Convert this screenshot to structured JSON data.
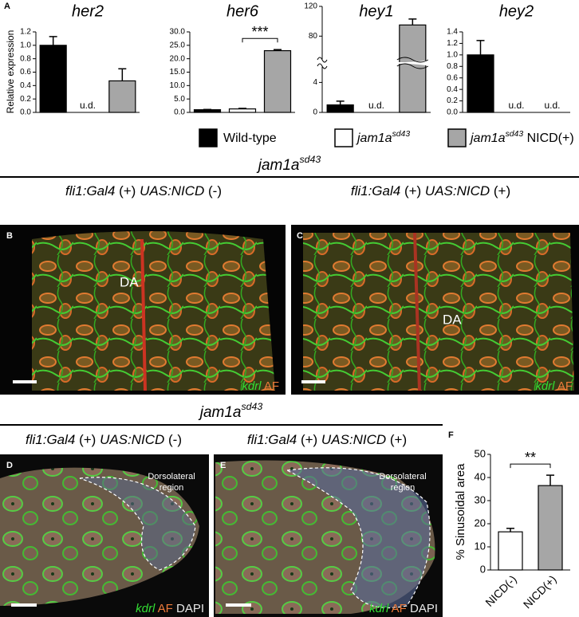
{
  "panel_labels": [
    "A",
    "B",
    "C",
    "D",
    "E",
    "F"
  ],
  "chart_data": [
    {
      "type": "bar",
      "title": "her2",
      "ylabel": "Relative expression",
      "values": [
        1.0,
        null,
        0.47
      ],
      "errors": [
        0.13,
        null,
        0.18
      ],
      "value_labels": [
        null,
        "u.d.",
        null
      ],
      "colors": [
        "#000000",
        "#ffffff",
        "#a6a6a6"
      ],
      "ylim": [
        0,
        1.2
      ],
      "yticks": [
        {
          "value": 0,
          "label": "0.0"
        },
        {
          "value": 0.2,
          "label": "0.2"
        },
        {
          "value": 0.4,
          "label": "0.4"
        },
        {
          "value": 0.6,
          "label": "0.6"
        },
        {
          "value": 0.8,
          "label": "0.8"
        },
        {
          "value": 1.0,
          "label": "1.0"
        },
        {
          "value": 1.2,
          "label": "1.2"
        }
      ]
    },
    {
      "type": "bar",
      "title": "her6",
      "values": [
        1.0,
        1.3,
        23.0
      ],
      "errors": [
        0.1,
        0.2,
        0.4
      ],
      "colors": [
        "#000000",
        "#ffffff",
        "#a6a6a6"
      ],
      "ylim": [
        0,
        30
      ],
      "yticks": [
        {
          "value": 0,
          "label": "0.0"
        },
        {
          "value": 5,
          "label": "5.0"
        },
        {
          "value": 10,
          "label": "10.0"
        },
        {
          "value": 15,
          "label": "15.0"
        },
        {
          "value": 20,
          "label": "20.0"
        },
        {
          "value": 25,
          "label": "25.0"
        },
        {
          "value": 30,
          "label": "30.0"
        }
      ],
      "annotation": "***",
      "annotation_between": [
        1,
        2
      ]
    },
    {
      "type": "bar",
      "title": "hey1",
      "values": [
        1.0,
        null,
        95
      ],
      "errors": [
        0.5,
        null,
        8
      ],
      "value_labels": [
        null,
        "u.d.",
        null
      ],
      "colors": [
        "#000000",
        "#ffffff",
        "#a6a6a6"
      ],
      "ylim": [
        0,
        120
      ],
      "ybreak": [
        5,
        60
      ],
      "yticks": [
        0,
        4,
        80,
        120
      ]
    },
    {
      "type": "bar",
      "title": "hey2",
      "values": [
        1.0,
        null,
        null
      ],
      "errors": [
        0.25,
        null,
        null
      ],
      "value_labels": [
        null,
        "u.d.",
        "u.d."
      ],
      "colors": [
        "#000000",
        "#ffffff",
        "#a6a6a6"
      ],
      "ylim": [
        0,
        1.4
      ],
      "yticks": [
        {
          "value": 0,
          "label": "0.0"
        },
        {
          "value": 0.2,
          "label": "0.2"
        },
        {
          "value": 0.4,
          "label": "0.4"
        },
        {
          "value": 0.6,
          "label": "0.6"
        },
        {
          "value": 0.8,
          "label": "0.8"
        },
        {
          "value": 1.0,
          "label": "1.0"
        },
        {
          "value": 1.2,
          "label": "1.2"
        },
        {
          "value": 1.4,
          "label": "1.4"
        }
      ]
    },
    {
      "type": "bar",
      "ylabel": "% Sinusoidal area",
      "categories": [
        "NICD(-)",
        "NICD(+)"
      ],
      "values": [
        16.5,
        36.5
      ],
      "errors": [
        1.5,
        4.5
      ],
      "colors": [
        "#ffffff",
        "#a6a6a6"
      ],
      "ylim": [
        0,
        50
      ],
      "yticks": [
        0,
        10,
        20,
        30,
        40,
        50
      ],
      "annotation": "**",
      "annotation_between": [
        0,
        1
      ]
    }
  ],
  "legend": [
    {
      "color": "#000000",
      "parts": [
        {
          "text": "Wild-type"
        }
      ]
    },
    {
      "color": "#ffffff",
      "parts": [
        {
          "text": "jam1a",
          "italic": true
        },
        {
          "text": "sd43",
          "italic": true,
          "sup": true
        }
      ]
    },
    {
      "color": "#a6a6a6",
      "parts": [
        {
          "text": "jam1a",
          "italic": true
        },
        {
          "text": "sd43",
          "italic": true,
          "sup": true
        },
        {
          "text": " NICD(+)"
        }
      ]
    }
  ],
  "headings": [
    [
      {
        "text": "jam1a",
        "italic": true
      },
      {
        "text": "sd43",
        "italic": true,
        "sup": true
      }
    ],
    [
      {
        "text": "jam1a",
        "italic": true
      },
      {
        "text": "sd43",
        "italic": true,
        "sup": true
      }
    ]
  ],
  "subheadings": [
    [
      {
        "text": "fli1:Gal4",
        "italic": true
      },
      {
        "text": " (+) "
      },
      {
        "text": "UAS:NICD",
        "italic": true
      },
      {
        "text": " (-)"
      }
    ],
    [
      {
        "text": "fli1:Gal4",
        "italic": true
      },
      {
        "text": " (+) "
      },
      {
        "text": "UAS:NICD",
        "italic": true
      },
      {
        "text": " (+)"
      }
    ],
    [
      {
        "text": "fli1:Gal4",
        "italic": true
      },
      {
        "text": " (+) "
      },
      {
        "text": "UAS:NICD",
        "italic": true
      },
      {
        "text": " (-)"
      }
    ],
    [
      {
        "text": "fli1:Gal4",
        "italic": true
      },
      {
        "text": " (+) "
      },
      {
        "text": "UAS:NICD",
        "italic": true
      },
      {
        "text": " (+)"
      }
    ]
  ],
  "images": [
    {
      "annotation": "DA",
      "stain": [
        {
          "text": "kdrl",
          "italic": true,
          "color": "#33dd33"
        },
        {
          "text": " AF",
          "color": "#ee7a3a"
        }
      ]
    },
    {
      "annotation": "DA",
      "stain": [
        {
          "text": "kdrl",
          "italic": true,
          "color": "#33dd33"
        },
        {
          "text": " AF",
          "color": "#ee7a3a"
        }
      ]
    },
    {
      "region": [
        "Dorsolateral",
        "region"
      ],
      "stain": [
        {
          "text": "kdrl",
          "italic": true,
          "color": "#33dd33"
        },
        {
          "text": " AF",
          "color": "#ee7a3a"
        },
        {
          "text": " DAPI",
          "color": "#e8e8e8"
        }
      ]
    },
    {
      "region": [
        "Dorsolateral",
        "region"
      ],
      "stain": [
        {
          "text": "kdrl",
          "italic": true,
          "color": "#33dd33"
        },
        {
          "text": " AF",
          "color": "#ee7a3a"
        },
        {
          "text": " DAPI",
          "color": "#e8e8e8"
        }
      ]
    }
  ]
}
